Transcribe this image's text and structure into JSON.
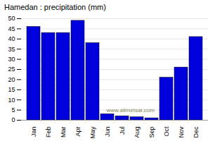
{
  "chart_data": {
    "type": "bar",
    "title": "Hamedan : precipitation (mm)",
    "categories": [
      "Jan",
      "Feb",
      "Mar",
      "Apr",
      "May",
      "Jun",
      "Jul",
      "Aug",
      "Sep",
      "Oct",
      "Nov",
      "Dec"
    ],
    "values": [
      46,
      43,
      43,
      49,
      38,
      3,
      2,
      1.5,
      1,
      21,
      26,
      41
    ],
    "color": "#0000dd",
    "ylim": [
      0,
      50
    ],
    "yticks": [
      0,
      5,
      10,
      15,
      20,
      25,
      30,
      35,
      40,
      45,
      50
    ],
    "grid": true,
    "annotation": "www.allmetsat.com"
  }
}
